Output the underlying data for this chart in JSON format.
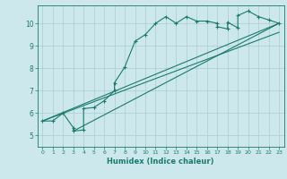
{
  "xlabel": "Humidex (Indice chaleur)",
  "bg_color": "#cce8ec",
  "line_color": "#1a7a6e",
  "grid_color": "#aacccc",
  "xlim": [
    -0.5,
    23.5
  ],
  "ylim": [
    4.5,
    10.8
  ],
  "xticks": [
    0,
    1,
    2,
    3,
    4,
    5,
    6,
    7,
    8,
    9,
    10,
    11,
    12,
    13,
    14,
    15,
    16,
    17,
    18,
    19,
    20,
    21,
    22,
    23
  ],
  "yticks": [
    5,
    6,
    7,
    8,
    9,
    10
  ],
  "curve1_x": [
    0,
    1,
    2,
    3,
    3,
    4,
    4,
    5,
    6,
    7,
    7,
    8,
    9,
    10,
    11,
    12,
    13,
    14,
    15,
    16,
    17,
    17,
    18,
    18,
    19,
    19,
    20,
    21,
    22,
    23
  ],
  "curve1_y": [
    5.65,
    5.65,
    6.0,
    5.35,
    5.2,
    5.25,
    6.2,
    6.25,
    6.55,
    7.0,
    7.35,
    8.05,
    9.2,
    9.5,
    10.0,
    10.3,
    10.0,
    10.3,
    10.1,
    10.1,
    10.0,
    9.85,
    9.75,
    10.05,
    9.8,
    10.35,
    10.55,
    10.3,
    10.15,
    10.0
  ],
  "line1_x": [
    0,
    23
  ],
  "line1_y": [
    5.65,
    10.0
  ],
  "line2_x": [
    0,
    23
  ],
  "line2_y": [
    5.65,
    9.6
  ],
  "line3_x": [
    3,
    23
  ],
  "line3_y": [
    5.2,
    10.0
  ]
}
